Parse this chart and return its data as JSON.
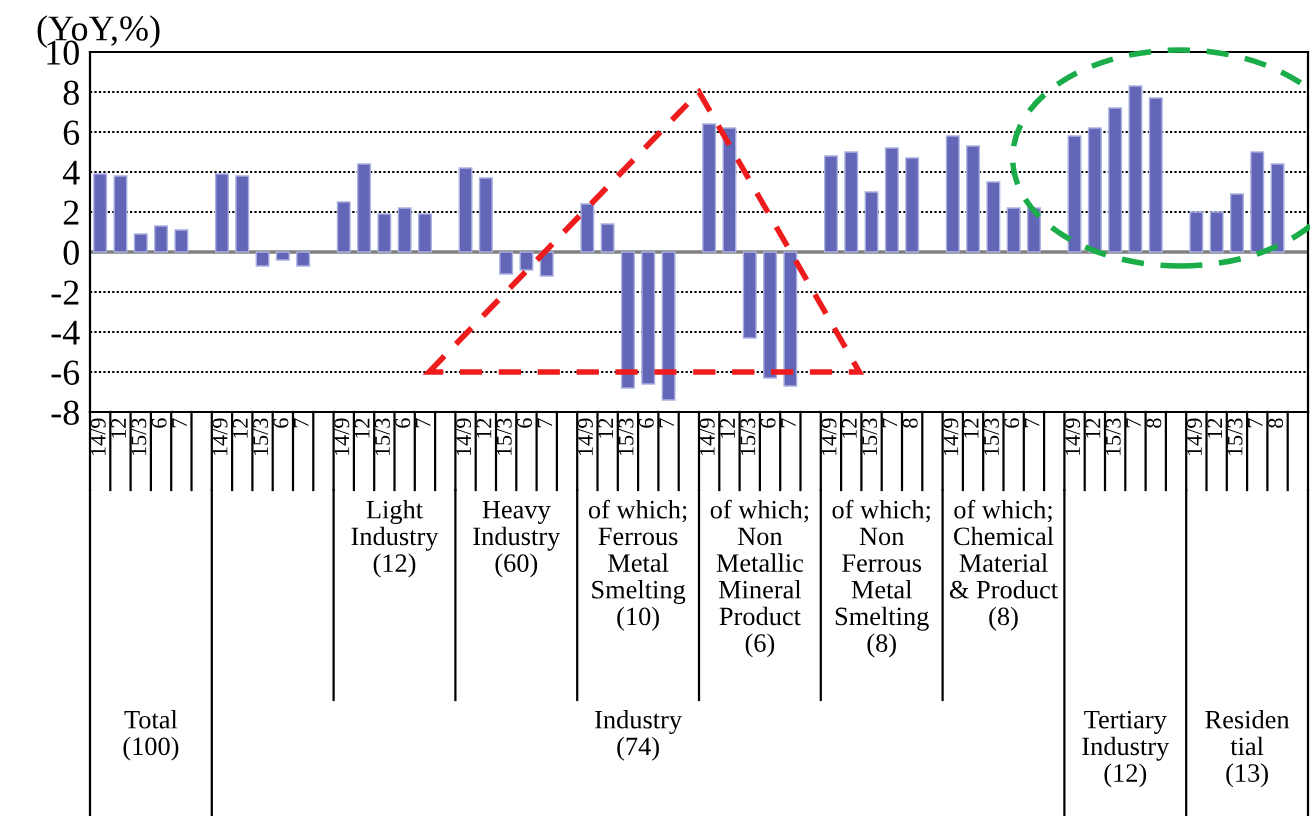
{
  "chart_data": {
    "type": "bar",
    "ylabel": "(YoY,%)",
    "categories": [
      "14/9",
      "12",
      "15/3",
      "6",
      "7",
      null,
      "14/9",
      "12",
      "15/3",
      "6",
      "7",
      null,
      "14/9",
      "12",
      "15/3",
      "6",
      "7",
      null,
      "14/9",
      "12",
      "15/3",
      "6",
      "7",
      null,
      "14/9",
      "12",
      "15/3",
      "6",
      "7",
      null,
      "14/9",
      "12",
      "15/3",
      "6",
      "7",
      null,
      "14/9",
      "12",
      "15/3",
      "7",
      "8",
      null,
      "14/9",
      "12",
      "15/3",
      "6",
      "7",
      null,
      "14/9",
      "12",
      "15/3",
      "7",
      "8",
      null,
      "14/9",
      "12",
      "15/3",
      "7",
      "8",
      null
    ],
    "series": [
      {
        "color": "#6366b6",
        "values": [
          3.9,
          3.8,
          0.9,
          1.3,
          1.1,
          null,
          3.9,
          3.8,
          -0.7,
          -0.4,
          -0.7,
          null,
          2.5,
          4.4,
          1.9,
          2.2,
          1.9,
          null,
          4.2,
          3.7,
          -1.1,
          -0.9,
          -1.2,
          null,
          2.4,
          1.4,
          -6.8,
          -6.6,
          -7.4,
          null,
          6.4,
          6.2,
          -4.3,
          -6.3,
          -6.7,
          null,
          4.8,
          5.0,
          3.0,
          5.2,
          4.7,
          null,
          5.8,
          5.3,
          3.5,
          2.2,
          2.2,
          null,
          5.8,
          6.2,
          7.2,
          8.3,
          7.7,
          null,
          2.0,
          2.0,
          2.9,
          5.0,
          4.4,
          null
        ]
      }
    ],
    "ylim": [
      -8,
      10
    ],
    "yticks": [
      -8,
      -6,
      -4,
      -2,
      0,
      2,
      4,
      6,
      8,
      10
    ],
    "grid": "y",
    "annotations": [
      "Total\n(100)",
      "Industry\n(74)",
      "Light\nIndustry\n(12)",
      "Heavy\nIndustry\n(60)",
      "of which;\nFerrous\nMetal\nSmelting\n(10)",
      "of which;\nNon\nMetallic\nMineral\nProduct\n(6)",
      "of which;\nNon\nFerrous\nMetal\nSmelting\n(8)",
      "of which;\nChemical\nMaterial\n& Product\n(8)",
      "Tertiary\nIndustry\n(12)",
      "Residen\ntial\n(13)"
    ]
  }
}
